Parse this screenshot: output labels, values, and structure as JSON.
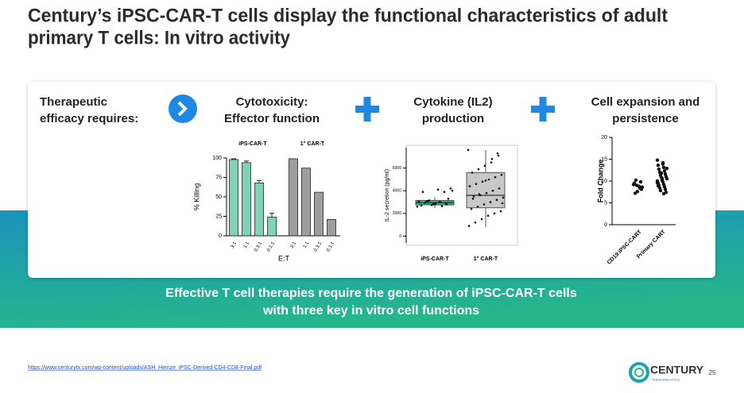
{
  "header": {
    "title_lines": [
      "Century’s iPSC-CAR-T cells display the functional characteristics of adult",
      "primary T cells: In vitro activity"
    ]
  },
  "card": {
    "intro": [
      "Therapeutic",
      "efficacy requires:"
    ],
    "columns": [
      {
        "title": [
          "Cytotoxicity:",
          "Effector function"
        ]
      },
      {
        "title": [
          "Cytokine (IL2)",
          "production"
        ]
      },
      {
        "title": [
          "Cell expansion and",
          "persistence"
        ]
      }
    ]
  },
  "charts": {
    "cytotoxicity": {
      "type": "bar",
      "y_label": "% Killing",
      "x_label": "E:T",
      "categories": [
        "3:1",
        "1:1",
        "0.3:1",
        "0.1:1"
      ],
      "ylim": [
        0,
        100
      ],
      "yticks": [
        0,
        25,
        50,
        75,
        100
      ],
      "groups": [
        {
          "name": "iPS-CAR-T",
          "color": "#7fd3b4",
          "values": [
            98,
            94,
            68,
            24
          ],
          "errors": [
            1,
            2,
            3,
            5
          ]
        },
        {
          "name": "1° CAR-T",
          "color": "#9e9e9e",
          "values": [
            99,
            87,
            56,
            21
          ]
        }
      ]
    },
    "il2": {
      "type": "box",
      "y_label": "IL-2 secretion (pg/ml)",
      "ylim": [
        -600,
        7800
      ],
      "yticks": [
        0,
        2000,
        4000,
        6000
      ],
      "groups": [
        {
          "name": "iPS-CAR-T",
          "color": "#2bb38a",
          "box": {
            "min": 2500,
            "q1": 2750,
            "median": 2950,
            "q3": 3150,
            "max": 3400
          },
          "points": [
            2600,
            2800,
            3000,
            2900,
            3100,
            2700,
            4200,
            3900,
            4100,
            2750,
            2950,
            3050,
            3300,
            2650,
            2850,
            3150,
            3900,
            4000,
            2900,
            3000,
            2800,
            3100
          ]
        },
        {
          "name": "1° CAR-T",
          "color": "#c8c8c8",
          "box": {
            "min": 800,
            "q1": 2500,
            "median": 3600,
            "q3": 5600,
            "max": 7600
          },
          "points": [
            7600,
            7300,
            6500,
            6200,
            5900,
            5600,
            5400,
            5200,
            5000,
            4800,
            4600,
            4400,
            4200,
            4000,
            3800,
            3600,
            3500,
            3400,
            3200,
            3000,
            2800,
            2600,
            2400,
            2200,
            2000,
            1800,
            1500,
            1200,
            900,
            7100,
            6800,
            4900,
            3700,
            3300,
            2900
          ]
        }
      ]
    },
    "expansion": {
      "type": "scatter",
      "y_label": "Fold Change",
      "ylim": [
        0,
        20
      ],
      "yticks": [
        0,
        5,
        10,
        15,
        20
      ],
      "groups": [
        {
          "name": "CD19 iPSC-CART",
          "values": [
            9.2,
            8.8,
            9.5,
            8.4,
            7.2,
            9.8,
            10.2,
            8.1,
            9.0,
            8.6,
            7.6
          ]
        },
        {
          "name": "Primary CART",
          "values": [
            14.8,
            14.2,
            13.6,
            13.1,
            12.7,
            12.3,
            12.0,
            11.6,
            11.3,
            11.0,
            10.8,
            10.5,
            10.2,
            10.0,
            9.8,
            9.5,
            9.2,
            9.0,
            8.7,
            8.4,
            8.1,
            7.8,
            7.4,
            11.8,
            12.9,
            10.6,
            9.6,
            13.9,
            8.9,
            7.1
          ]
        }
      ]
    }
  },
  "banner": {
    "lines": [
      "Effective T cell therapies require the generation of iPSC-CAR-T cells",
      "with three key in vitro cell functions"
    ]
  },
  "footer": {
    "url": "https://www.centurytx.com/wp-content/uploads/ASH_Heinze_iPSC-Derived-CD4-CD8-Final.pdf",
    "logo": "CENTURY",
    "logo_sub": "THERAPEUTICS",
    "page": "25"
  }
}
